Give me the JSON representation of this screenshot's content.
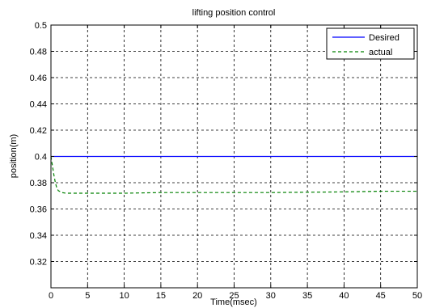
{
  "chart_data": {
    "type": "line",
    "title": "lifting position control",
    "xlabel": "Time(msec)",
    "ylabel": "position(m)",
    "xlim": [
      0,
      50
    ],
    "ylim": [
      0.3,
      0.5
    ],
    "xticks": [
      0,
      5,
      10,
      15,
      20,
      25,
      30,
      35,
      40,
      45,
      50
    ],
    "yticks": [
      0.32,
      0.34,
      0.36,
      0.38,
      0.4,
      0.42,
      0.44,
      0.46,
      0.48,
      0.5
    ],
    "ytick_labels": [
      "0.32",
      "0.34",
      "0.36",
      "0.38",
      "0.4",
      "0.42",
      "0.44",
      "0.46",
      "0.48",
      "0.5"
    ],
    "grid": true,
    "legend_position": "top-right",
    "series": [
      {
        "name": "Desired",
        "color": "#0000ff",
        "style": "solid",
        "x": [
          0,
          50
        ],
        "y": [
          0.4,
          0.4
        ]
      },
      {
        "name": "actual",
        "color": "#008000",
        "style": "dashed",
        "x": [
          0,
          0.2,
          0.4,
          0.6,
          0.8,
          1.0,
          1.5,
          2,
          3,
          5,
          10,
          15,
          20,
          30,
          40,
          45,
          50
        ],
        "y": [
          0.4,
          0.393,
          0.386,
          0.38,
          0.376,
          0.374,
          0.3725,
          0.372,
          0.372,
          0.372,
          0.372,
          0.3725,
          0.3725,
          0.3725,
          0.373,
          0.3735,
          0.3735
        ]
      }
    ]
  }
}
